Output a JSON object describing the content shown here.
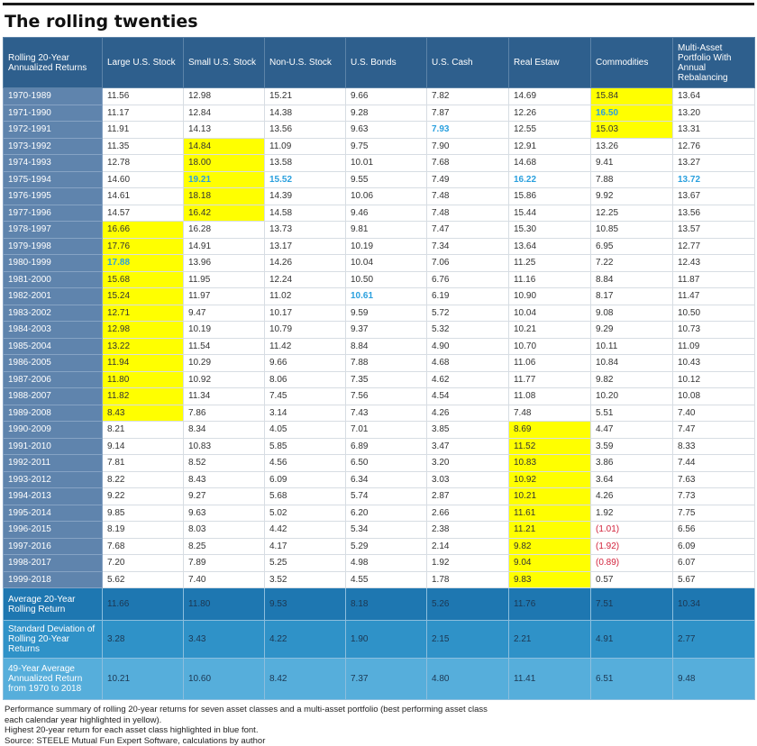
{
  "title": "The rolling twenties",
  "chart_data": {
    "type": "table",
    "title": "The rolling twenties",
    "columns": [
      "Rolling 20-Year Annualized Returns",
      "Large U.S. Stock",
      "Small U.S. Stock",
      "Non-U.S. Stock",
      "U.S. Bonds",
      "U.S. Cash",
      "Real Estaw",
      "Commodities",
      "Multi-Asset Portfolio With Annual Rebalancing"
    ],
    "rows": [
      [
        "1970-1989",
        "11.56",
        "12.98",
        "15.21",
        "9.66",
        "7.82",
        "14.69",
        "15.84",
        "13.64"
      ],
      [
        "1971-1990",
        "11.17",
        "12.84",
        "14.38",
        "9.28",
        "7.87",
        "12.26",
        "16.50",
        "13.20"
      ],
      [
        "1972-1991",
        "11.91",
        "14.13",
        "13.56",
        "9.63",
        "7.93",
        "12.55",
        "15.03",
        "13.31"
      ],
      [
        "1973-1992",
        "11.35",
        "14.84",
        "11.09",
        "9.75",
        "7.90",
        "12.91",
        "13.26",
        "12.76"
      ],
      [
        "1974-1993",
        "12.78",
        "18.00",
        "13.58",
        "10.01",
        "7.68",
        "14.68",
        "9.41",
        "13.27"
      ],
      [
        "1975-1994",
        "14.60",
        "19.21",
        "15.52",
        "9.55",
        "7.49",
        "16.22",
        "7.88",
        "13.72"
      ],
      [
        "1976-1995",
        "14.61",
        "18.18",
        "14.39",
        "10.06",
        "7.48",
        "15.86",
        "9.92",
        "13.67"
      ],
      [
        "1977-1996",
        "14.57",
        "16.42",
        "14.58",
        "9.46",
        "7.48",
        "15.44",
        "12.25",
        "13.56"
      ],
      [
        "1978-1997",
        "16.66",
        "16.28",
        "13.73",
        "9.81",
        "7.47",
        "15.30",
        "10.85",
        "13.57"
      ],
      [
        "1979-1998",
        "17.76",
        "14.91",
        "13.17",
        "10.19",
        "7.34",
        "13.64",
        "6.95",
        "12.77"
      ],
      [
        "1980-1999",
        "17.88",
        "13.96",
        "14.26",
        "10.04",
        "7.06",
        "11.25",
        "7.22",
        "12.43"
      ],
      [
        "1981-2000",
        "15.68",
        "11.95",
        "12.24",
        "10.50",
        "6.76",
        "11.16",
        "8.84",
        "11.87"
      ],
      [
        "1982-2001",
        "15.24",
        "11.97",
        "11.02",
        "10.61",
        "6.19",
        "10.90",
        "8.17",
        "11.47"
      ],
      [
        "1983-2002",
        "12.71",
        "9.47",
        "10.17",
        "9.59",
        "5.72",
        "10.04",
        "9.08",
        "10.50"
      ],
      [
        "1984-2003",
        "12.98",
        "10.19",
        "10.79",
        "9.37",
        "5.32",
        "10.21",
        "9.29",
        "10.73"
      ],
      [
        "1985-2004",
        "13.22",
        "11.54",
        "11.42",
        "8.84",
        "4.90",
        "10.70",
        "10.11",
        "11.09"
      ],
      [
        "1986-2005",
        "11.94",
        "10.29",
        "9.66",
        "7.88",
        "4.68",
        "11.06",
        "10.84",
        "10.43"
      ],
      [
        "1987-2006",
        "11.80",
        "10.92",
        "8.06",
        "7.35",
        "4.62",
        "11.77",
        "9.82",
        "10.12"
      ],
      [
        "1988-2007",
        "11.82",
        "11.34",
        "7.45",
        "7.56",
        "4.54",
        "11.08",
        "10.20",
        "10.08"
      ],
      [
        "1989-2008",
        "8.43",
        "7.86",
        "3.14",
        "7.43",
        "4.26",
        "7.48",
        "5.51",
        "7.40"
      ],
      [
        "1990-2009",
        "8.21",
        "8.34",
        "4.05",
        "7.01",
        "3.85",
        "8.69",
        "4.47",
        "7.47"
      ],
      [
        "1991-2010",
        "9.14",
        "10.83",
        "5.85",
        "6.89",
        "3.47",
        "11.52",
        "3.59",
        "8.33"
      ],
      [
        "1992-2011",
        "7.81",
        "8.52",
        "4.56",
        "6.50",
        "3.20",
        "10.83",
        "3.86",
        "7.44"
      ],
      [
        "1993-2012",
        "8.22",
        "8.43",
        "6.09",
        "6.34",
        "3.03",
        "10.92",
        "3.64",
        "7.63"
      ],
      [
        "1994-2013",
        "9.22",
        "9.27",
        "5.68",
        "5.74",
        "2.87",
        "10.21",
        "4.26",
        "7.73"
      ],
      [
        "1995-2014",
        "9.85",
        "9.63",
        "5.02",
        "6.20",
        "2.66",
        "11.61",
        "1.92",
        "7.75"
      ],
      [
        "1996-2015",
        "8.19",
        "8.03",
        "4.42",
        "5.34",
        "2.38",
        "11.21",
        "(1.01)",
        "6.56"
      ],
      [
        "1997-2016",
        "7.68",
        "8.25",
        "4.17",
        "5.29",
        "2.14",
        "9.82",
        "(1.92)",
        "6.09"
      ],
      [
        "1998-2017",
        "7.20",
        "7.89",
        "5.25",
        "4.98",
        "1.92",
        "9.04",
        "(0.89)",
        "6.07"
      ],
      [
        "1999-2018",
        "5.62",
        "7.40",
        "3.52",
        "4.55",
        "1.78",
        "9.83",
        "0.57",
        "5.67"
      ]
    ],
    "highlight_yellow": [
      [
        0,
        7
      ],
      [
        1,
        7
      ],
      [
        2,
        7
      ],
      [
        3,
        2
      ],
      [
        4,
        2
      ],
      [
        5,
        2
      ],
      [
        6,
        2
      ],
      [
        7,
        2
      ],
      [
        8,
        1
      ],
      [
        9,
        1
      ],
      [
        10,
        1
      ],
      [
        11,
        1
      ],
      [
        12,
        1
      ],
      [
        13,
        1
      ],
      [
        14,
        1
      ],
      [
        15,
        1
      ],
      [
        16,
        1
      ],
      [
        17,
        1
      ],
      [
        18,
        1
      ],
      [
        19,
        1
      ],
      [
        20,
        6
      ],
      [
        21,
        6
      ],
      [
        22,
        6
      ],
      [
        23,
        6
      ],
      [
        24,
        6
      ],
      [
        25,
        6
      ],
      [
        26,
        6
      ],
      [
        27,
        6
      ],
      [
        28,
        6
      ],
      [
        29,
        6
      ]
    ],
    "highlight_blue": [
      [
        1,
        7
      ],
      [
        2,
        5
      ],
      [
        5,
        2
      ],
      [
        5,
        3
      ],
      [
        5,
        6
      ],
      [
        5,
        8
      ],
      [
        10,
        1
      ],
      [
        12,
        4
      ]
    ],
    "negative_red": [
      [
        26,
        7
      ],
      [
        27,
        7
      ],
      [
        28,
        7
      ]
    ],
    "summary": [
      [
        "Average 20-Year Rolling Return",
        "11.66",
        "11.80",
        "9.53",
        "8.18",
        "5.26",
        "11.76",
        "7.51",
        "10.34"
      ],
      [
        "Standard Deviation of Rolling 20-Year Returns",
        "3.28",
        "3.43",
        "4.22",
        "1.90",
        "2.15",
        "2.21",
        "4.91",
        "2.77"
      ],
      [
        "49-Year Average Annualized Return from 1970 to 2018",
        "10.21",
        "10.60",
        "8.42",
        "7.37",
        "4.80",
        "11.41",
        "6.51",
        "9.48"
      ]
    ],
    "colors": {
      "header": "#2e5f8d",
      "period_cell": "#5f84ad",
      "highlight_yellow": "#ffff00",
      "best_blue": "#2aa0de",
      "negative_red": "#d2233c",
      "summary_1": "#1e77b1",
      "summary_2": "#2f92c8",
      "summary_3": "#56aedb"
    }
  },
  "notes": [
    "Performance summary of rolling 20-year returns for seven asset classes and a multi-asset portfolio (best performing asset class",
    "each calendar year highlighted in yellow).",
    "Highest 20-year return for each asset class highlighted in blue font.",
    "Source: STEELE Mutual Fun Expert Software, calculations by author"
  ]
}
